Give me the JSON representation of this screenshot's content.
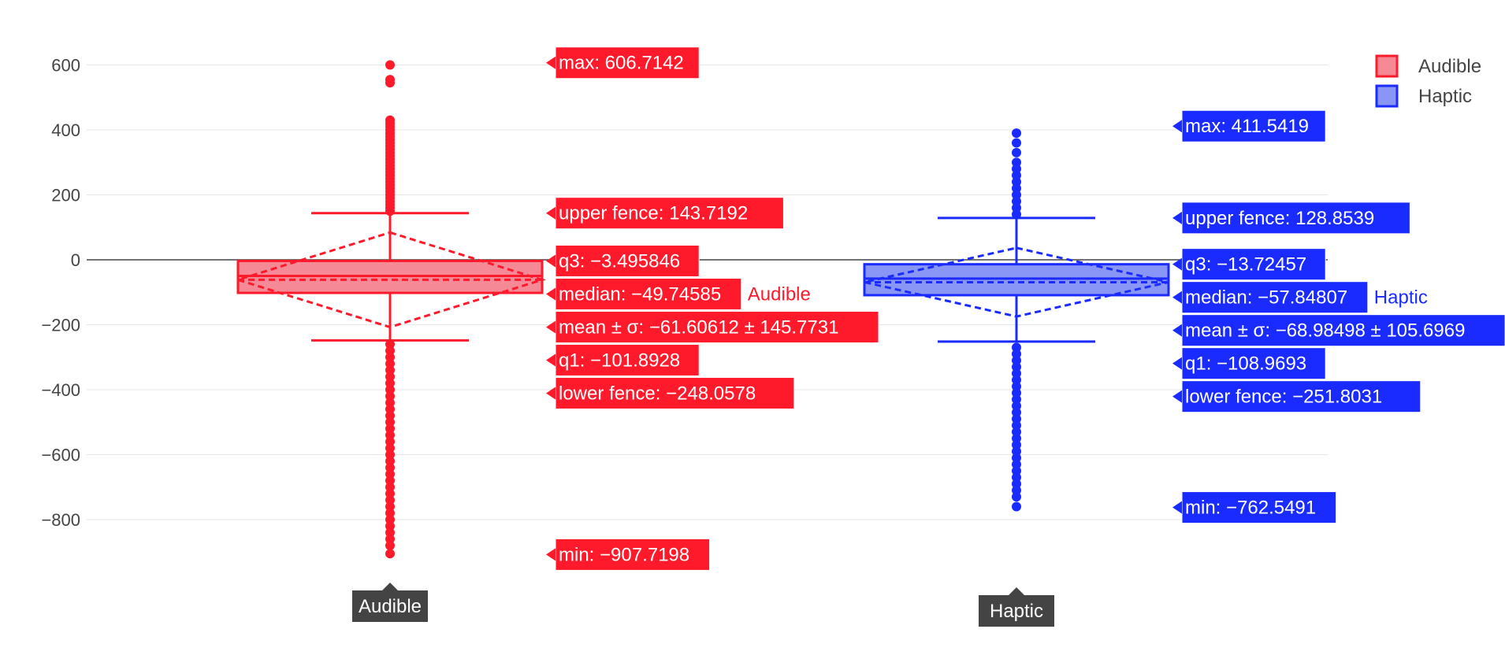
{
  "chart_data": {
    "type": "box",
    "y_ticks": [
      600,
      400,
      200,
      0,
      -200,
      -400,
      -600,
      -800
    ],
    "y_tick_labels": [
      "600",
      "400",
      "200",
      "0",
      "−200",
      "−400",
      "−600",
      "−800"
    ],
    "ylim": [
      -960,
      640
    ],
    "grid": true,
    "legend_position": "top-right",
    "categories": [
      "Audible",
      "Haptic"
    ],
    "series": [
      {
        "name": "Audible",
        "color": "#ff1a2b",
        "fill": "#f58a96",
        "max": 606.7142,
        "upper_fence": 143.7192,
        "q3": -3.495846,
        "median": -49.74585,
        "mean": -61.60612,
        "sd": 145.7731,
        "q1": -101.8928,
        "lower_fence": -248.0578,
        "min": -907.7198,
        "outliers_high": [
          600,
          545,
          555,
          430,
          420,
          410,
          400,
          390,
          380,
          370,
          360,
          350,
          340,
          330,
          320,
          310,
          300,
          290,
          280,
          270,
          260,
          250,
          240,
          230,
          220,
          210,
          200,
          190,
          180,
          170,
          160,
          150
        ],
        "outliers_low": [
          -260,
          -280,
          -300,
          -320,
          -340,
          -360,
          -380,
          -400,
          -420,
          -440,
          -460,
          -480,
          -500,
          -520,
          -540,
          -560,
          -580,
          -600,
          -620,
          -640,
          -660,
          -680,
          -700,
          -720,
          -740,
          -760,
          -780,
          -800,
          -820,
          -840,
          -860,
          -880,
          -905
        ],
        "labels": {
          "max": "max: 606.7142",
          "upper_fence": "upper fence: 143.7192",
          "q3": "q3: −3.495846",
          "median": "median: −49.74585",
          "mean": "mean ± σ: −61.60612 ± 145.7731",
          "q1": "q1: −101.8928",
          "lower_fence": "lower fence: −248.0578",
          "min": "min: −907.7198"
        }
      },
      {
        "name": "Haptic",
        "color": "#1a2bff",
        "fill": "#8a96f5",
        "max": 411.5419,
        "upper_fence": 128.8539,
        "q3": -13.72457,
        "median": -57.84807,
        "mean": -68.98498,
        "sd": 105.6969,
        "q1": -108.9693,
        "lower_fence": -251.8031,
        "min": -762.5491,
        "outliers_high": [
          390,
          360,
          330,
          300,
          280,
          260,
          240,
          220,
          200,
          180,
          160,
          140
        ],
        "outliers_low": [
          -270,
          -290,
          -310,
          -330,
          -350,
          -370,
          -390,
          -410,
          -430,
          -450,
          -470,
          -490,
          -510,
          -530,
          -550,
          -570,
          -590,
          -610,
          -630,
          -650,
          -670,
          -690,
          -710,
          -730,
          -760
        ],
        "labels": {
          "max": "max: 411.5419",
          "upper_fence": "upper fence: 128.8539",
          "q3": "q3: −13.72457",
          "median": "median: −57.84807",
          "mean": "mean ± σ: −68.98498 ± 105.6969",
          "q1": "q1: −108.9693",
          "lower_fence": "lower fence: −251.8031",
          "min": "min: −762.5491"
        }
      }
    ]
  },
  "legend": [
    {
      "name": "Audible",
      "color": "#ff1a2b",
      "fill": "#f58a96"
    },
    {
      "name": "Haptic",
      "color": "#1a2bff",
      "fill": "#8a96f5"
    }
  ],
  "axis_hover": [
    "Audible",
    "Haptic"
  ]
}
